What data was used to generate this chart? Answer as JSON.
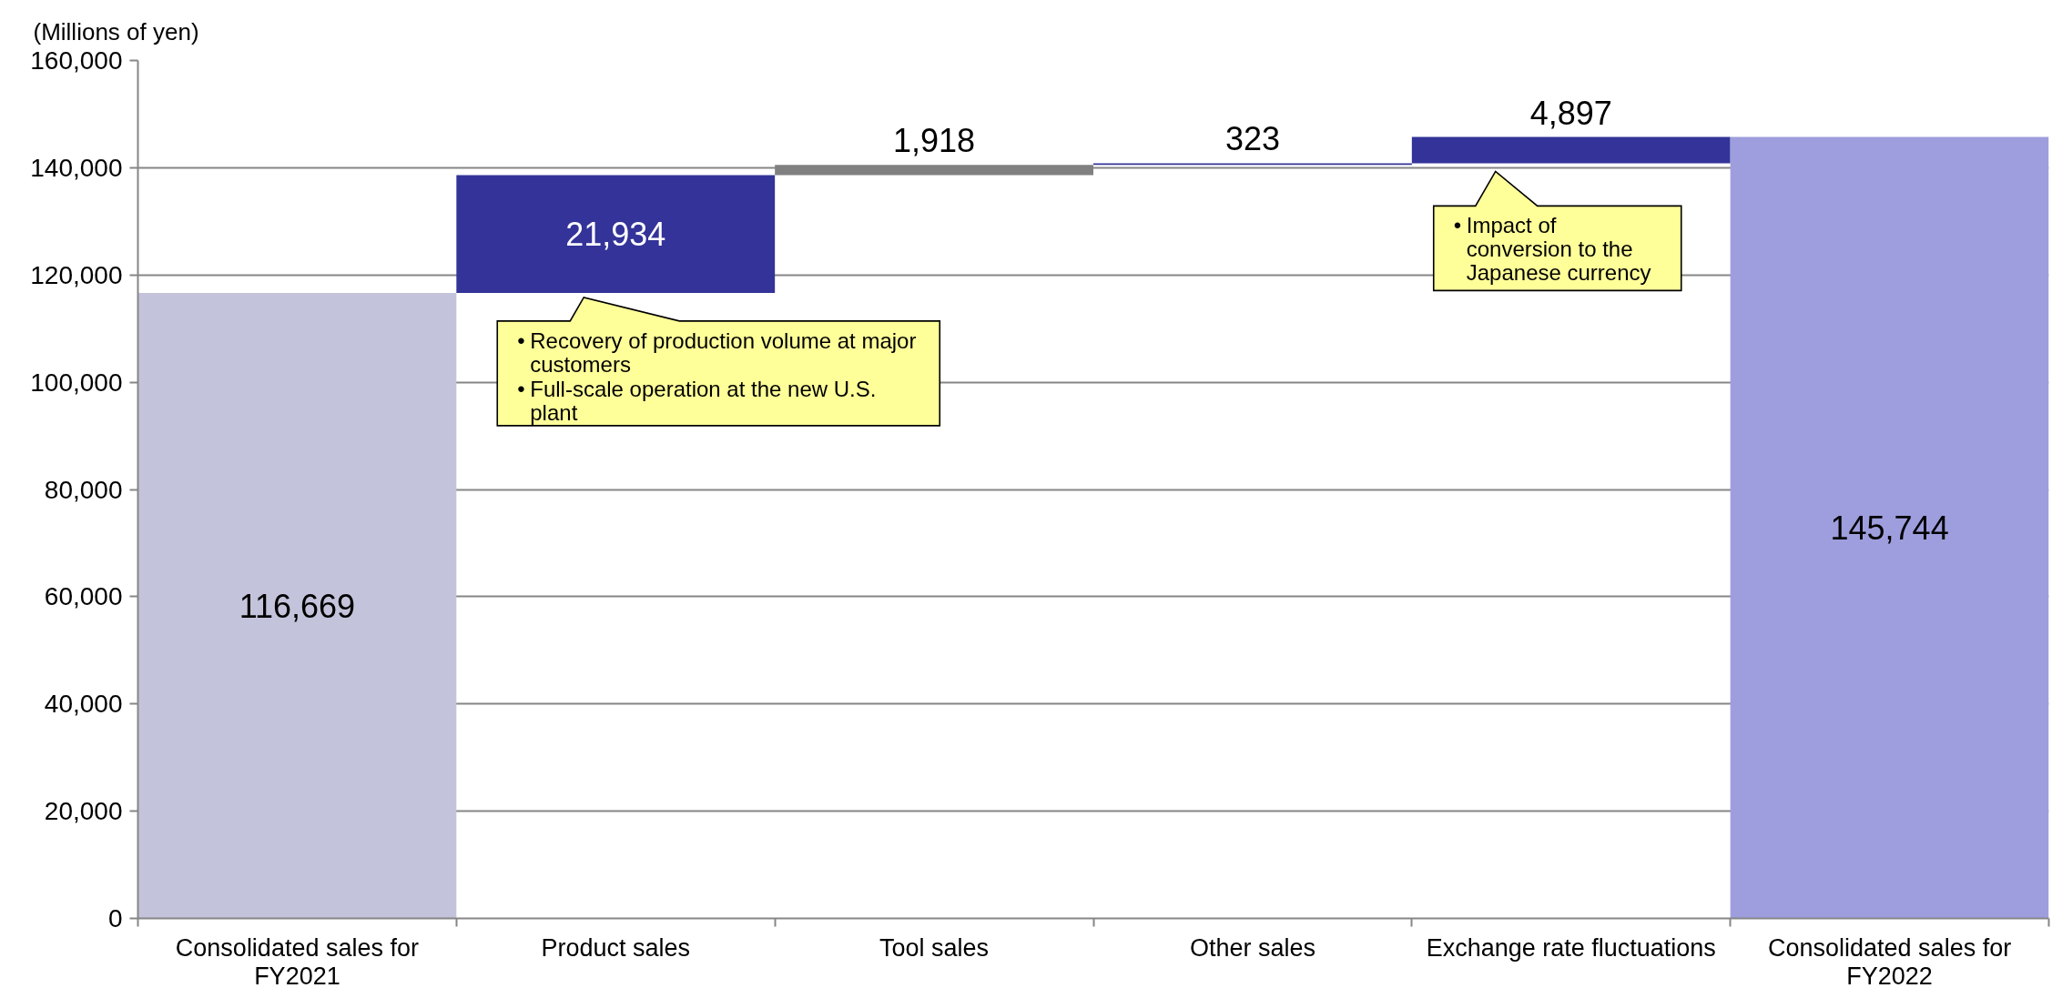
{
  "chart_data": {
    "type": "bar",
    "ylabel": "(Millions of yen)",
    "categories": [
      "Consolidated sales for FY2021",
      "Product sales",
      "Tool sales",
      "Other sales",
      "Exchange rate fluctuations",
      "Consolidated sales for FY2022"
    ],
    "values": [
      116669,
      21934,
      1918,
      323,
      4897,
      145744
    ],
    "base": [
      0,
      116669,
      138603,
      140521,
      140844,
      0
    ],
    "colors": [
      "#c3c3db",
      "#333399",
      "#808080",
      "#333399",
      "#333399",
      "#9e9ede"
    ],
    "value_labels": [
      "116,669",
      "21,934",
      "1,918",
      "323",
      "4,897",
      "145,744"
    ],
    "ylim": [
      0,
      160000
    ],
    "yticks": [
      0,
      {
        "value": 20000,
        "label": "20,000"
      },
      {
        "value": 40000,
        "label": "40,000"
      },
      {
        "value": 60000,
        "label": "60,000"
      },
      {
        "value": 80000,
        "label": "80,000"
      },
      {
        "value": 100000,
        "label": "100,000"
      },
      {
        "value": 120000,
        "label": "120,000"
      },
      {
        "value": 140000,
        "label": "140,000"
      },
      {
        "value": 160000,
        "label": "160,000"
      }
    ],
    "grid": "y",
    "annotations": [
      {
        "text": "• Recovery of production volume at major customers\n• Full-scale operation at the new U.S. plant",
        "x": "Product sales",
        "y": 116669
      },
      {
        "text": "• Impact of conversion to the Japanese currency",
        "x": "Exchange rate fluctuations",
        "y": 140844
      }
    ]
  }
}
